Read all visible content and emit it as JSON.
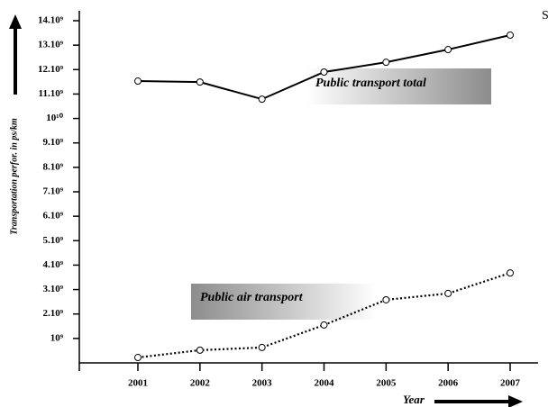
{
  "chart_data": {
    "type": "line",
    "y_label": "Transportation perfor. in ps/km",
    "x_label": "Year",
    "annotation": "S",
    "categories": [
      "2001",
      "2002",
      "2003",
      "2004",
      "2005",
      "2006",
      "2007"
    ],
    "series": [
      {
        "name": "Public transport total",
        "color": "#000000",
        "dash": "solid",
        "values": [
          11530000000,
          11490000000,
          10790000000,
          11900000000,
          12300000000,
          12820000000,
          13410000000
        ]
      },
      {
        "name": "Public air transport",
        "color": "#000000",
        "dash": "dotted",
        "values": [
          220000000,
          520000000,
          630000000,
          1550000000,
          2580000000,
          2840000000,
          3680000000
        ]
      }
    ],
    "ylim": [
      0,
      14000000000
    ],
    "yticks": [
      {
        "value": 1000000000,
        "label": "10⁹"
      },
      {
        "value": 2000000000,
        "label": "2.10⁹"
      },
      {
        "value": 3000000000,
        "label": "3.10⁹"
      },
      {
        "value": 4000000000,
        "label": "4.10⁹"
      },
      {
        "value": 5000000000,
        "label": "5.10⁹"
      },
      {
        "value": 6000000000,
        "label": "6.10⁹"
      },
      {
        "value": 7000000000,
        "label": "7.10⁹"
      },
      {
        "value": 8000000000,
        "label": "8.10⁹"
      },
      {
        "value": 9000000000,
        "label": "9.10⁹"
      },
      {
        "value": 10000000000,
        "label": "10¹⁰"
      },
      {
        "value": 11000000000,
        "label": "11.10⁹"
      },
      {
        "value": 12000000000,
        "label": "12.10⁹"
      },
      {
        "value": 13000000000,
        "label": "13.10⁹"
      },
      {
        "value": 14000000000,
        "label": "14.10⁹"
      }
    ],
    "grid": false
  }
}
